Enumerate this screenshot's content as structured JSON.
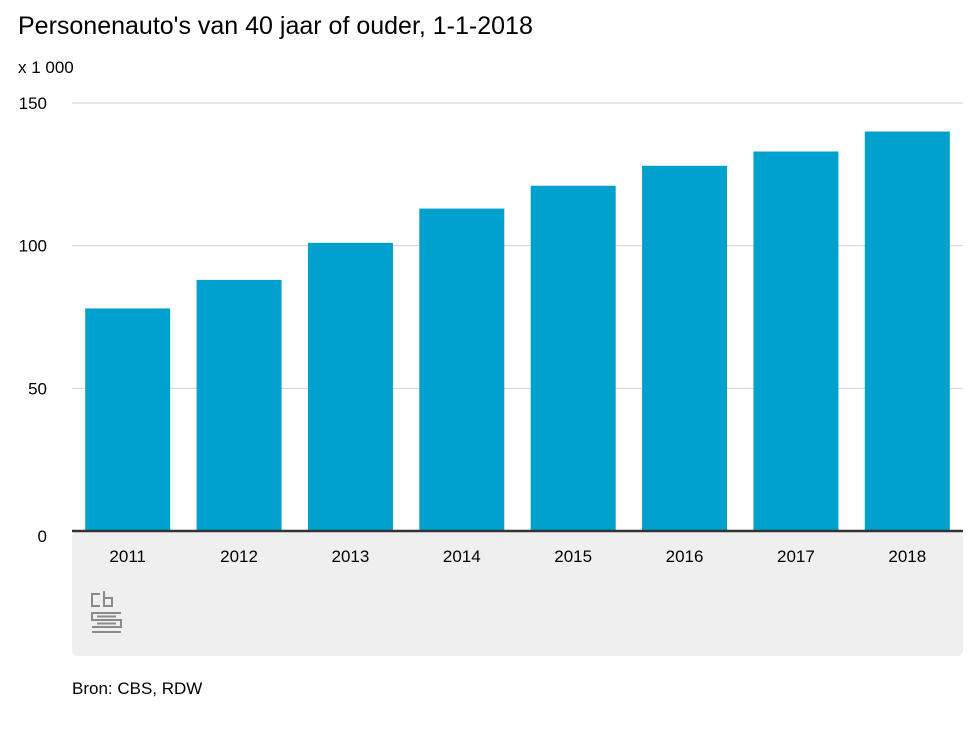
{
  "chart_data": {
    "type": "bar",
    "title": "Personenauto's van 40 jaar of ouder, 1-1-2018",
    "unit_label": "x 1 000",
    "categories": [
      "2011",
      "2012",
      "2013",
      "2014",
      "2015",
      "2016",
      "2017",
      "2018"
    ],
    "values": [
      78,
      88,
      101,
      113,
      121,
      128,
      133,
      140
    ],
    "yticks": [
      0,
      50,
      100,
      150
    ],
    "ylim": [
      0,
      150
    ],
    "grid": true,
    "bar_color": "#00a1cd",
    "source": "Bron: CBS, RDW"
  },
  "logo": {
    "icon": "cbs-logo-icon"
  }
}
